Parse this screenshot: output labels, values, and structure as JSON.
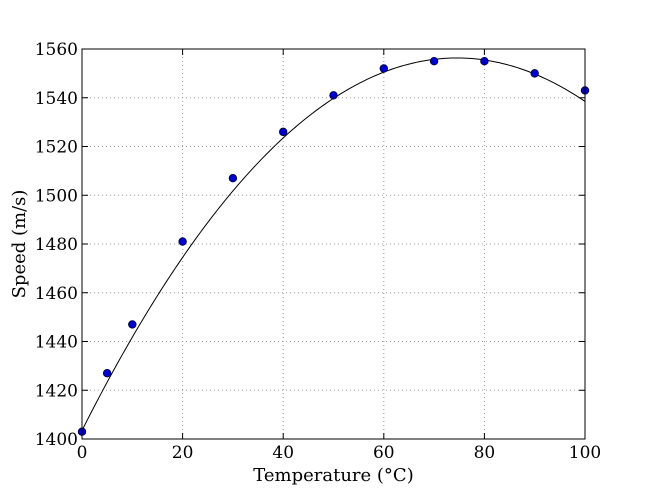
{
  "chart_data": {
    "type": "scatter",
    "title": "",
    "xlabel": "Temperature (°C)",
    "ylabel": "Speed (m/s)",
    "xlim": [
      0,
      100
    ],
    "ylim": [
      1400,
      1560
    ],
    "xticks": [
      "0",
      "20",
      "40",
      "60",
      "80",
      "100"
    ],
    "yticks": [
      "1400",
      "1420",
      "1440",
      "1460",
      "1480",
      "1500",
      "1520",
      "1540",
      "1560"
    ],
    "grid": true,
    "series": [
      {
        "kind": "scatter",
        "x": [
          0,
          5,
          10,
          20,
          30,
          40,
          50,
          60,
          70,
          80,
          90,
          100
        ],
        "y": [
          1403,
          1427,
          1447,
          1481,
          1507,
          1526,
          1541,
          1552,
          1555,
          1555,
          1550,
          1543
        ],
        "color": "#0000cc"
      },
      {
        "kind": "fit-line",
        "model": "polynomial",
        "coefficients": [
          1403.5,
          4.1,
          -0.0275
        ],
        "color": "#000000"
      }
    ]
  }
}
